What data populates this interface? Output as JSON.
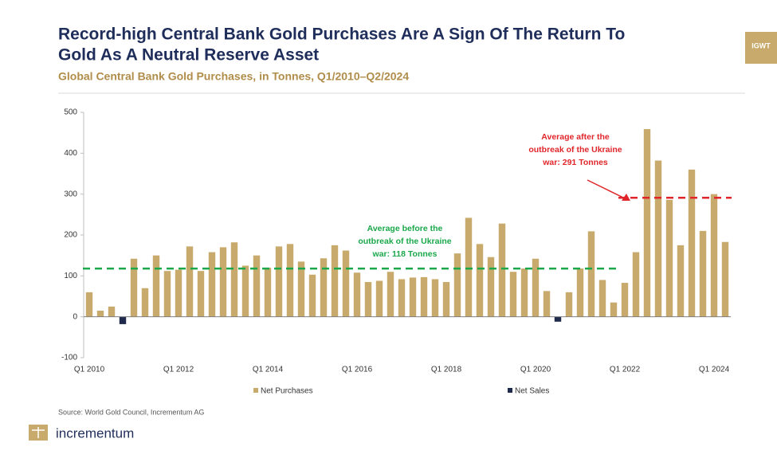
{
  "chart_data": {
    "type": "bar",
    "title_lines": [
      "Record-high Central Bank Gold Purchases Are A Sign Of The Return To",
      "Gold As A Neutral Reserve Asset"
    ],
    "subtitle": "Global Central Bank Gold Purchases, in Tonnes, Q1/2010–Q2/2024",
    "badge": "IGWT",
    "categories": [
      "Q1 2010",
      null,
      null,
      null,
      null,
      null,
      null,
      null,
      "Q1 2012",
      null,
      null,
      null,
      null,
      null,
      null,
      null,
      "Q1 2014",
      null,
      null,
      null,
      null,
      null,
      null,
      null,
      "Q1 2016",
      null,
      null,
      null,
      null,
      null,
      null,
      null,
      "Q1 2018",
      null,
      null,
      null,
      null,
      null,
      null,
      null,
      "Q1 2020",
      null,
      null,
      null,
      null,
      null,
      null,
      null,
      "Q1 2022",
      null,
      null,
      null,
      null,
      null,
      null,
      null,
      "Q1 2024",
      null
    ],
    "series": [
      {
        "name": "Net Purchases",
        "color": "#c8ab6c",
        "values": [
          60,
          15,
          25,
          null,
          142,
          70,
          150,
          112,
          115,
          172,
          112,
          158,
          170,
          182,
          125,
          150,
          120,
          172,
          178,
          135,
          103,
          143,
          175,
          162,
          108,
          85,
          88,
          110,
          92,
          96,
          97,
          92,
          85,
          155,
          242,
          178,
          146,
          228,
          110,
          118,
          142,
          63,
          null,
          60,
          118,
          209,
          90,
          35,
          83,
          158,
          459,
          382,
          286,
          175,
          360,
          210,
          300,
          183
        ]
      },
      {
        "name": "Net Sales",
        "color": "#1f2a4d",
        "values": [
          null,
          null,
          null,
          -18,
          null,
          null,
          null,
          null,
          null,
          null,
          null,
          null,
          null,
          null,
          null,
          null,
          null,
          null,
          null,
          null,
          null,
          null,
          null,
          null,
          null,
          null,
          null,
          null,
          null,
          null,
          null,
          null,
          null,
          null,
          null,
          null,
          null,
          null,
          null,
          null,
          null,
          null,
          -12,
          null,
          null,
          null,
          null,
          null,
          null,
          null,
          null,
          null,
          null,
          null,
          null,
          null,
          null,
          null
        ]
      }
    ],
    "ylim": [
      -100,
      500
    ],
    "yticks": [
      -100,
      0,
      100,
      200,
      300,
      400,
      500
    ],
    "annotations": [
      {
        "text_lines": [
          "Average before the",
          "outbreak of the Ukraine",
          "war: 118 Tonnes"
        ],
        "value": 118,
        "color": "#1aa84b"
      },
      {
        "text_lines": [
          "Average after the",
          "outbreak of the Ukraine",
          "war: 291 Tonnes"
        ],
        "value": 291,
        "color": "#e0262b"
      }
    ],
    "source": "Source: World Gold Council, Incrementum AG",
    "logo": "incrementum"
  }
}
